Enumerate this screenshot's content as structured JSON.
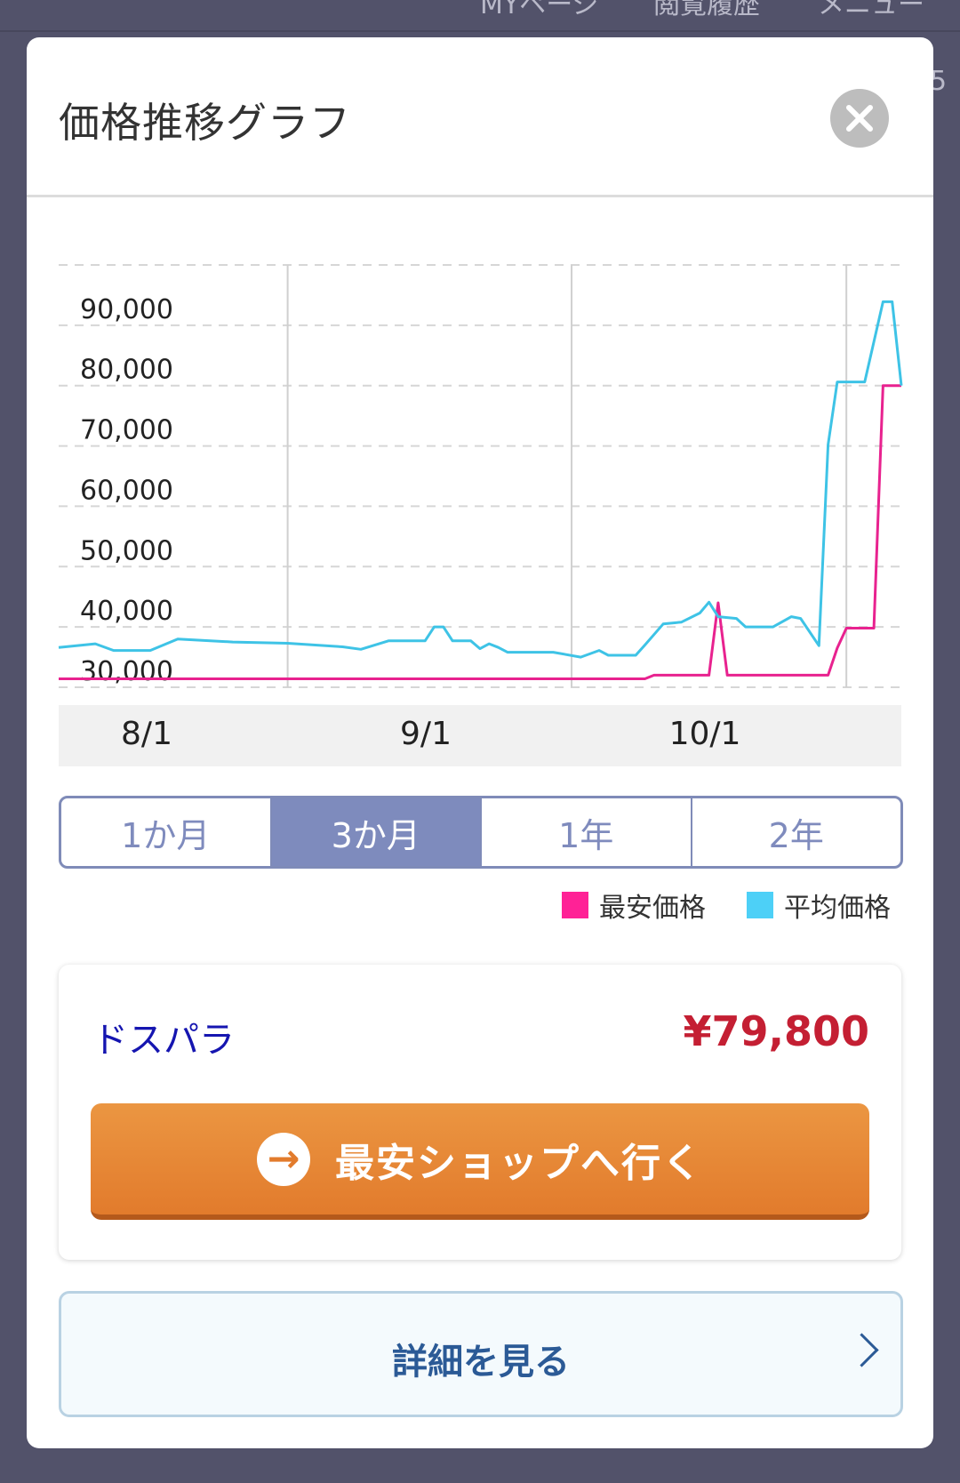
{
  "background_nav": {
    "items": [
      "MYページ",
      "閲覧履歴",
      "メニュー"
    ],
    "side_text": "5"
  },
  "modal": {
    "title": "価格推移グラフ",
    "close_icon": "close-circle-icon"
  },
  "chart_data": {
    "type": "line",
    "title": "",
    "ylim": [
      30000,
      100000
    ],
    "y_ticks": [
      "90,000",
      "80,000",
      "70,000",
      "60,000",
      "50,000",
      "40,000",
      "30,000"
    ],
    "y_tick_values": [
      90000,
      80000,
      70000,
      60000,
      50000,
      40000,
      30000
    ],
    "x_range": [
      "7/7",
      "10/7"
    ],
    "x_ticks": [
      "8/1",
      "9/1",
      "10/1"
    ],
    "grid": true,
    "series": [
      {
        "name": "最安価格",
        "color": "#e8228f",
        "points": [
          [
            "7/7",
            31400
          ],
          [
            "9/9",
            31400
          ],
          [
            "9/10",
            32000
          ],
          [
            "9/16",
            32000
          ],
          [
            "9/17",
            44000
          ],
          [
            "9/18",
            32000
          ],
          [
            "9/29",
            32000
          ],
          [
            "9/30",
            36500
          ],
          [
            "10/1",
            39800
          ],
          [
            "10/4",
            39800
          ],
          [
            "10/5",
            80000
          ],
          [
            "10/7",
            80000
          ]
        ]
      },
      {
        "name": "平均価格",
        "color": "#3ec3e6",
        "points": [
          [
            "7/7",
            36600
          ],
          [
            "7/11",
            37200
          ],
          [
            "7/13",
            36100
          ],
          [
            "7/17",
            36100
          ],
          [
            "7/20",
            38000
          ],
          [
            "7/26",
            37500
          ],
          [
            "8/1",
            37300
          ],
          [
            "8/7",
            36700
          ],
          [
            "8/9",
            36300
          ],
          [
            "8/12",
            37700
          ],
          [
            "8/16",
            37700
          ],
          [
            "8/17",
            40000
          ],
          [
            "8/18",
            40000
          ],
          [
            "8/19",
            37700
          ],
          [
            "8/21",
            37700
          ],
          [
            "8/22",
            36400
          ],
          [
            "8/23",
            37200
          ],
          [
            "8/24",
            36600
          ],
          [
            "8/25",
            35800
          ],
          [
            "8/30",
            35800
          ],
          [
            "9/2",
            35000
          ],
          [
            "9/4",
            36100
          ],
          [
            "9/5",
            35300
          ],
          [
            "9/8",
            35300
          ],
          [
            "9/9",
            37000
          ],
          [
            "9/11",
            40500
          ],
          [
            "9/13",
            40800
          ],
          [
            "9/15",
            42300
          ],
          [
            "9/16",
            44100
          ],
          [
            "9/17",
            41700
          ],
          [
            "9/19",
            41400
          ],
          [
            "9/20",
            40000
          ],
          [
            "9/23",
            40000
          ],
          [
            "9/25",
            41700
          ],
          [
            "9/26",
            41400
          ],
          [
            "9/28",
            36900
          ],
          [
            "9/29",
            70200
          ],
          [
            "9/30",
            80600
          ],
          [
            "10/3",
            80600
          ],
          [
            "10/5",
            93900
          ],
          [
            "10/6",
            93900
          ],
          [
            "10/7",
            80000
          ]
        ]
      }
    ]
  },
  "period_tabs": [
    {
      "label": "1か月",
      "active": false
    },
    {
      "label": "3か月",
      "active": true
    },
    {
      "label": "1年",
      "active": false
    },
    {
      "label": "2年",
      "active": false
    }
  ],
  "legend": [
    {
      "label": "最安価格",
      "color": "#ff2296"
    },
    {
      "label": "平均価格",
      "color": "#4dd0f7"
    }
  ],
  "shop_card": {
    "shop_name": "ドスパラ",
    "price": "¥79,800",
    "go_button": "最安ショップへ行く",
    "go_icon": "arrow-right-circle-icon"
  },
  "detail_button": {
    "label": "詳細を見る",
    "icon": "chevron-right-icon"
  }
}
